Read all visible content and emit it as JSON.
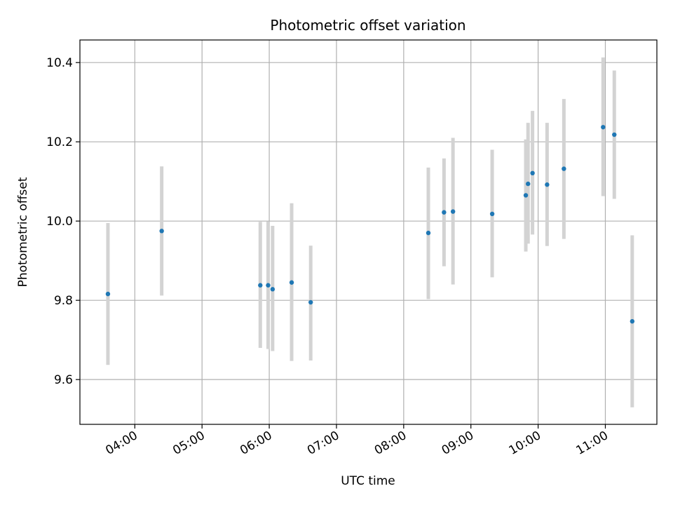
{
  "chart_data": {
    "type": "scatter",
    "title": "Photometric offset variation",
    "xlabel": "UTC time",
    "ylabel": "Photometric offset",
    "x_tick_labels": [
      "04:00",
      "05:00",
      "06:00",
      "07:00",
      "08:00",
      "09:00",
      "10:00",
      "11:00"
    ],
    "y_tick_labels": [
      "9.6",
      "9.8",
      "10.0",
      "10.2",
      "10.4"
    ],
    "y_ticks": [
      9.6,
      9.8,
      10.0,
      10.2,
      10.4
    ],
    "xlim": [
      "03:11",
      "11:46"
    ],
    "ylim": [
      9.487,
      10.457
    ],
    "grid": true,
    "point_color": "#1f77b4",
    "errorbar_color": "#d3d3d3",
    "points": [
      {
        "x": "03:36",
        "y": 9.816,
        "err_low": 9.637,
        "err_high": 9.995
      },
      {
        "x": "04:24",
        "y": 9.975,
        "err_low": 9.812,
        "err_high": 10.138
      },
      {
        "x": "05:52",
        "y": 9.838,
        "err_low": 9.68,
        "err_high": 9.998
      },
      {
        "x": "05:59",
        "y": 9.838,
        "err_low": 9.677,
        "err_high": 9.999
      },
      {
        "x": "06:03",
        "y": 9.828,
        "err_low": 9.672,
        "err_high": 9.988
      },
      {
        "x": "06:20",
        "y": 9.845,
        "err_low": 9.647,
        "err_high": 10.045
      },
      {
        "x": "06:37",
        "y": 9.795,
        "err_low": 9.648,
        "err_high": 9.938
      },
      {
        "x": "08:22",
        "y": 9.97,
        "err_low": 9.803,
        "err_high": 10.135
      },
      {
        "x": "08:36",
        "y": 10.022,
        "err_low": 9.886,
        "err_high": 10.158
      },
      {
        "x": "08:44",
        "y": 10.024,
        "err_low": 9.84,
        "err_high": 10.21
      },
      {
        "x": "09:19",
        "y": 10.018,
        "err_low": 9.858,
        "err_high": 10.18
      },
      {
        "x": "09:49",
        "y": 10.065,
        "err_low": 9.923,
        "err_high": 10.206
      },
      {
        "x": "09:51",
        "y": 10.094,
        "err_low": 9.943,
        "err_high": 10.248
      },
      {
        "x": "09:55",
        "y": 10.121,
        "err_low": 9.966,
        "err_high": 10.278
      },
      {
        "x": "10:08",
        "y": 10.092,
        "err_low": 9.937,
        "err_high": 10.248
      },
      {
        "x": "10:23",
        "y": 10.132,
        "err_low": 9.955,
        "err_high": 10.308
      },
      {
        "x": "10:58",
        "y": 10.237,
        "err_low": 10.063,
        "err_high": 10.413
      },
      {
        "x": "11:08",
        "y": 10.218,
        "err_low": 10.056,
        "err_high": 10.38
      },
      {
        "x": "11:24",
        "y": 9.747,
        "err_low": 9.53,
        "err_high": 9.964
      }
    ]
  }
}
